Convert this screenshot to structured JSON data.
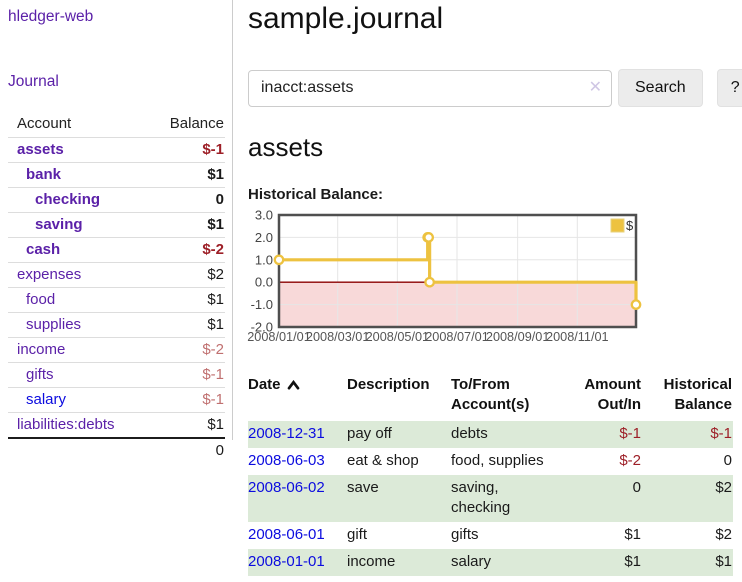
{
  "app": {
    "title": "hledger-web"
  },
  "colors": {
    "accent_purple": "#5b21a8",
    "link_blue": "#0c0cdf",
    "negative_strong": "#9d1f27",
    "negative_soft": "#c07070",
    "stripe_green": "#dcead8",
    "series_yellow": "#edc240",
    "zero_line": "#8b0000",
    "negative_region_fill": "#f8d9d9",
    "plot_border": "#4f4f4f"
  },
  "icons": {
    "sort_ascending": "chevron-up",
    "clear_search": "✕"
  },
  "sidebar": {
    "journal_link": "Journal",
    "accounts": {
      "headers": {
        "account": "Account",
        "balance": "Balance"
      },
      "rows": [
        {
          "name": "assets",
          "level": 0,
          "emphasized": true,
          "link_color": "purple",
          "balance": "$-1",
          "balance_tone": "negative-strong"
        },
        {
          "name": "bank",
          "level": 1,
          "emphasized": true,
          "link_color": "purple",
          "balance": "$1",
          "balance_tone": "normal"
        },
        {
          "name": "checking",
          "level": 2,
          "emphasized": true,
          "link_color": "purple",
          "balance": "0",
          "balance_tone": "normal"
        },
        {
          "name": "saving",
          "level": 2,
          "emphasized": true,
          "link_color": "purple",
          "balance": "$1",
          "balance_tone": "normal"
        },
        {
          "name": "cash",
          "level": 1,
          "emphasized": true,
          "link_color": "purple",
          "balance": "$-2",
          "balance_tone": "negative-strong"
        },
        {
          "name": "expenses",
          "level": 0,
          "emphasized": false,
          "link_color": "purple",
          "balance": "$2",
          "balance_tone": "normal"
        },
        {
          "name": "food",
          "level": 1,
          "emphasized": false,
          "link_color": "purple",
          "balance": "$1",
          "balance_tone": "normal"
        },
        {
          "name": "supplies",
          "level": 1,
          "emphasized": false,
          "link_color": "purple",
          "balance": "$1",
          "balance_tone": "normal"
        },
        {
          "name": "income",
          "level": 0,
          "emphasized": false,
          "link_color": "purple",
          "balance": "$-2",
          "balance_tone": "negative-soft"
        },
        {
          "name": "gifts",
          "level": 1,
          "emphasized": false,
          "link_color": "purple",
          "balance": "$-1",
          "balance_tone": "negative-soft"
        },
        {
          "name": "salary",
          "level": 1,
          "emphasized": false,
          "link_color": "blue",
          "balance": "$-1",
          "balance_tone": "negative-soft"
        },
        {
          "name": "liabilities:debts",
          "level": 0,
          "emphasized": false,
          "link_color": "purple",
          "balance": "$1",
          "balance_tone": "normal"
        }
      ],
      "total": "0"
    }
  },
  "main": {
    "title": "sample.journal",
    "search": {
      "value": "inacct:assets",
      "clear_icon": "✕",
      "search_button": "Search",
      "help_button": "?"
    },
    "account_heading": "assets",
    "chart_title": "Historical Balance:",
    "register": {
      "headers": {
        "date": "Date",
        "description": "Description",
        "accounts": "To/From Account(s)",
        "amount": "Amount Out/In",
        "balance": "Historical Balance"
      },
      "rows": [
        {
          "date": "2008-12-31",
          "description": "pay off",
          "accounts": "debts",
          "amount": "$-1",
          "amount_tone": "neg",
          "balance": "$-1",
          "balance_tone": "neg"
        },
        {
          "date": "2008-06-03",
          "description": "eat & shop",
          "accounts": "food, supplies",
          "amount": "$-2",
          "amount_tone": "neg",
          "balance": "0",
          "balance_tone": "normal"
        },
        {
          "date": "2008-06-02",
          "description": "save",
          "accounts": "saving, checking",
          "amount": "0",
          "amount_tone": "normal",
          "balance": "$2",
          "balance_tone": "normal"
        },
        {
          "date": "2008-06-01",
          "description": "gift",
          "accounts": "gifts",
          "amount": "$1",
          "amount_tone": "normal",
          "balance": "$2",
          "balance_tone": "normal"
        },
        {
          "date": "2008-01-01",
          "description": "income",
          "accounts": "salary",
          "amount": "$1",
          "amount_tone": "normal",
          "balance": "$1",
          "balance_tone": "normal"
        }
      ]
    }
  },
  "chart_data": {
    "type": "line",
    "title": "Historical Balance:",
    "style": "step-after",
    "series": [
      {
        "name": "$",
        "color": "#edc240",
        "points": [
          [
            "2008-01-01",
            1
          ],
          [
            "2008-06-01",
            2
          ],
          [
            "2008-06-02",
            2
          ],
          [
            "2008-06-03",
            0
          ],
          [
            "2008-12-31",
            -1
          ]
        ]
      }
    ],
    "x_range": [
      "2008-01-01",
      "2008-12-31"
    ],
    "y_range": [
      -2,
      3
    ],
    "x_tick_labels": [
      "2008/01/01",
      "2008/03/01",
      "2008/05/01",
      "2008/07/01",
      "2008/09/01",
      "2008/11/01"
    ],
    "y_ticks": [
      3,
      2,
      1,
      0,
      -1,
      -2
    ],
    "y_tick_labels": [
      "3.0",
      "2.0",
      "1.0",
      "0.0",
      "-1.0",
      "-2.0"
    ],
    "legend": {
      "label": "$",
      "position": "top-right"
    },
    "grid": true,
    "zero_line": true,
    "negative_region_shaded": true
  }
}
